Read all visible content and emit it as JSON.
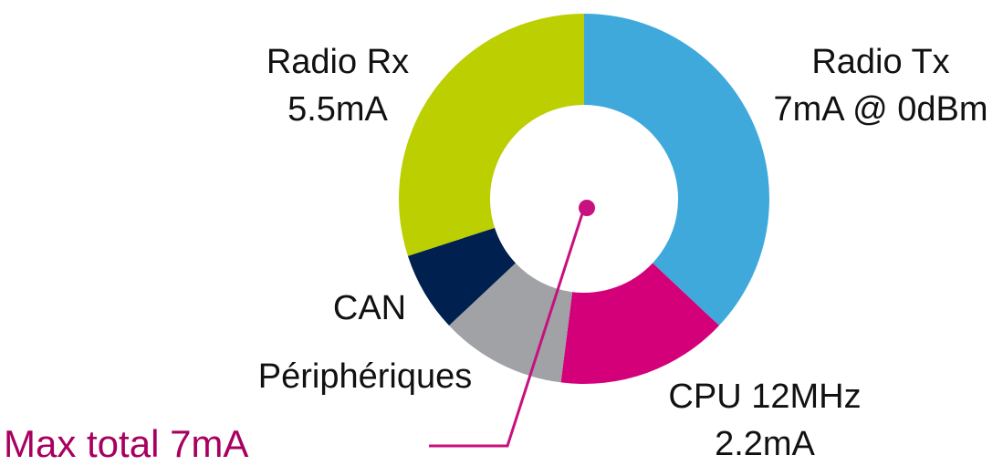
{
  "chart_data": {
    "type": "donut",
    "categories": [
      [
        "Radio Tx",
        "7mA @ 0dBm"
      ],
      [
        "CPU 12MHz",
        "2.2mA"
      ],
      [
        "Périphériques"
      ],
      [
        "CAN"
      ],
      [
        "Radio Rx",
        "5.5mA"
      ]
    ],
    "values": [
      37,
      15,
      11,
      7,
      30
    ],
    "colors": [
      "#3fa9dc",
      "#d4007a",
      "#a0a2a5",
      "#002050",
      "#bccf00"
    ],
    "annotation": {
      "text": "Max total 7mA",
      "color": "#c8107e"
    }
  }
}
